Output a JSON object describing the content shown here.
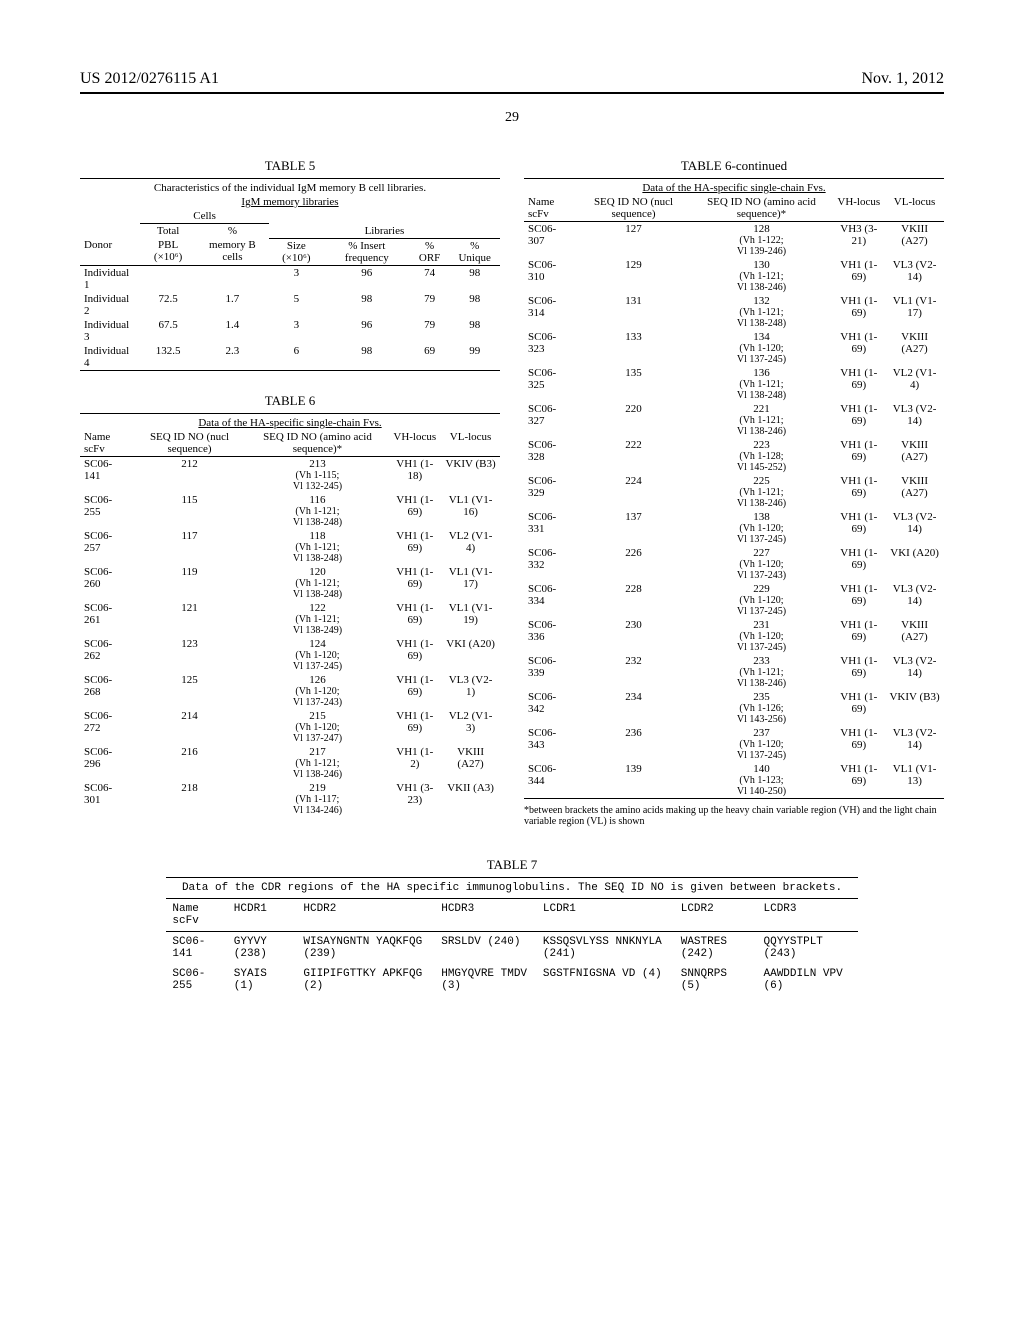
{
  "header": {
    "left": "US 2012/0276115 A1",
    "right": "Nov. 1, 2012"
  },
  "page_number": "29",
  "table5": {
    "title": "TABLE 5",
    "caption1": "Characteristics of the individual IgM memory B cell libraries.",
    "caption2": "IgM memory libraries",
    "group1": "Cells",
    "group2": "Libraries",
    "h_total": "Total",
    "h_pct": "%",
    "h_donor": "Donor",
    "h_pbl": "PBL (×10⁶)",
    "h_mem": "memory B cells",
    "h_size": "Size (×10⁶)",
    "h_insert": "% Insert frequency",
    "h_orf": "% ORF",
    "h_unique": "% Unique",
    "rows": [
      {
        "d": "Individual 1",
        "pbl": "",
        "mem": "",
        "size": "3",
        "ins": "96",
        "orf": "74",
        "uni": "98"
      },
      {
        "d": "Individual 2",
        "pbl": "72.5",
        "mem": "1.7",
        "size": "5",
        "ins": "98",
        "orf": "79",
        "uni": "98"
      },
      {
        "d": "Individual 3",
        "pbl": "67.5",
        "mem": "1.4",
        "size": "3",
        "ins": "96",
        "orf": "79",
        "uni": "98"
      },
      {
        "d": "Individual 4",
        "pbl": "132.5",
        "mem": "2.3",
        "size": "6",
        "ins": "98",
        "orf": "69",
        "uni": "99"
      }
    ]
  },
  "table6": {
    "title": "TABLE 6",
    "title_cont": "TABLE 6-continued",
    "caption": "Data of the HA-specific single-chain Fvs.",
    "h_name": "Name scFv",
    "h_nucl": "SEQ ID NO (nucl sequence)",
    "h_aa": "SEQ ID NO (amino acid sequence)*",
    "h_vh": "VH-locus",
    "h_vl": "VL-locus",
    "left_rows": [
      {
        "n": "SC06-141",
        "s1": "212",
        "s2": "213",
        "s2b": "(Vh 1-115; Vl 132-245)",
        "vh": "VH1 (1-18)",
        "vl": "VKIV (B3)"
      },
      {
        "n": "SC06-255",
        "s1": "115",
        "s2": "116",
        "s2b": "(Vh 1-121; Vl 138-248)",
        "vh": "VH1 (1-69)",
        "vl": "VL1 (V1-16)"
      },
      {
        "n": "SC06-257",
        "s1": "117",
        "s2": "118",
        "s2b": "(Vh 1-121; Vl 138-248)",
        "vh": "VH1 (1-69)",
        "vl": "VL2 (V1-4)"
      },
      {
        "n": "SC06-260",
        "s1": "119",
        "s2": "120",
        "s2b": "(Vh 1-121; Vl 138-248)",
        "vh": "VH1 (1-69)",
        "vl": "VL1 (V1-17)"
      },
      {
        "n": "SC06-261",
        "s1": "121",
        "s2": "122",
        "s2b": "(Vh 1-121; Vl 138-249)",
        "vh": "VH1 (1-69)",
        "vl": "VL1 (V1-19)"
      },
      {
        "n": "SC06-262",
        "s1": "123",
        "s2": "124",
        "s2b": "(Vh 1-120; Vl 137-245)",
        "vh": "VH1 (1-69)",
        "vl": "VKI (A20)"
      },
      {
        "n": "SC06-268",
        "s1": "125",
        "s2": "126",
        "s2b": "(Vh 1-120; Vl 137-243)",
        "vh": "VH1 (1-69)",
        "vl": "VL3 (V2-1)"
      },
      {
        "n": "SC06-272",
        "s1": "214",
        "s2": "215",
        "s2b": "(Vh 1-120; Vl 137-247)",
        "vh": "VH1 (1-69)",
        "vl": "VL2 (V1-3)"
      },
      {
        "n": "SC06-296",
        "s1": "216",
        "s2": "217",
        "s2b": "(Vh 1-121; Vl 138-246)",
        "vh": "VH1 (1-2)",
        "vl": "VKIII (A27)"
      },
      {
        "n": "SC06-301",
        "s1": "218",
        "s2": "219",
        "s2b": "(Vh 1-117; Vl 134-246)",
        "vh": "VH1 (3-23)",
        "vl": "VKII (A3)"
      }
    ],
    "right_rows": [
      {
        "n": "SC06-307",
        "s1": "127",
        "s2": "128",
        "s2b": "(Vh 1-122; Vl 139-246)",
        "vh": "VH3 (3-21)",
        "vl": "VKIII (A27)"
      },
      {
        "n": "SC06-310",
        "s1": "129",
        "s2": "130",
        "s2b": "(Vh 1-121; Vl 138-246)",
        "vh": "VH1 (1-69)",
        "vl": "VL3 (V2-14)"
      },
      {
        "n": "SC06-314",
        "s1": "131",
        "s2": "132",
        "s2b": "(Vh 1-121; Vl 138-248)",
        "vh": "VH1 (1-69)",
        "vl": "VL1 (V1-17)"
      },
      {
        "n": "SC06-323",
        "s1": "133",
        "s2": "134",
        "s2b": "(Vh 1-120; Vl 137-245)",
        "vh": "VH1 (1-69)",
        "vl": "VKIII (A27)"
      },
      {
        "n": "SC06-325",
        "s1": "135",
        "s2": "136",
        "s2b": "(Vh 1-121; Vl 138-248)",
        "vh": "VH1 (1-69)",
        "vl": "VL2 (V1-4)"
      },
      {
        "n": "SC06-327",
        "s1": "220",
        "s2": "221",
        "s2b": "(Vh 1-121; Vl 138-246)",
        "vh": "VH1 (1-69)",
        "vl": "VL3 (V2-14)"
      },
      {
        "n": "SC06-328",
        "s1": "222",
        "s2": "223",
        "s2b": "(Vh 1-128; Vl 145-252)",
        "vh": "VH1 (1-69)",
        "vl": "VKIII (A27)"
      },
      {
        "n": "SC06-329",
        "s1": "224",
        "s2": "225",
        "s2b": "(Vh 1-121; Vl 138-246)",
        "vh": "VH1 (1-69)",
        "vl": "VKIII (A27)"
      },
      {
        "n": "SC06-331",
        "s1": "137",
        "s2": "138",
        "s2b": "(Vh 1-120; Vl 137-245)",
        "vh": "VH1 (1-69)",
        "vl": "VL3 (V2-14)"
      },
      {
        "n": "SC06-332",
        "s1": "226",
        "s2": "227",
        "s2b": "(Vh 1-120; Vl 137-243)",
        "vh": "VH1 (1-69)",
        "vl": "VKI (A20)"
      },
      {
        "n": "SC06-334",
        "s1": "228",
        "s2": "229",
        "s2b": "(Vh 1-120; Vl 137-245)",
        "vh": "VH1 (1-69)",
        "vl": "VL3 (V2-14)"
      },
      {
        "n": "SC06-336",
        "s1": "230",
        "s2": "231",
        "s2b": "(Vh 1-120; Vl 137-245)",
        "vh": "VH1 (1-69)",
        "vl": "VKIII (A27)"
      },
      {
        "n": "SC06-339",
        "s1": "232",
        "s2": "233",
        "s2b": "(Vh 1-121; Vl 138-246)",
        "vh": "VH1 (1-69)",
        "vl": "VL3 (V2-14)"
      },
      {
        "n": "SC06-342",
        "s1": "234",
        "s2": "235",
        "s2b": "(Vh 1-126; Vl 143-256)",
        "vh": "VH1 (1-69)",
        "vl": "VKIV (B3)"
      },
      {
        "n": "SC06-343",
        "s1": "236",
        "s2": "237",
        "s2b": "(Vh 1-120; Vl 137-245)",
        "vh": "VH1 (1-69)",
        "vl": "VL3 (V2-14)"
      },
      {
        "n": "SC06-344",
        "s1": "139",
        "s2": "140",
        "s2b": "(Vh 1-123; Vl 140-250)",
        "vh": "VH1 (1-69)",
        "vl": "VL1 (V1-13)"
      }
    ],
    "footnote": "*between brackets the amino acids making up the heavy chain variable region (VH) and the light chain variable region (VL) is shown"
  },
  "table7": {
    "title": "TABLE 7",
    "caption": "Data of the CDR regions of the HA specific immunoglobulins. The SEQ ID NO is given between brackets.",
    "h_name": "Name scFv",
    "h1": "HCDR1",
    "h2": "HCDR2",
    "h3": "HCDR3",
    "l1": "LCDR1",
    "l2": "LCDR2",
    "l3": "LCDR3",
    "rows": [
      {
        "n": "SC06-141",
        "c1": "GYYVY (238)",
        "c2": "WISAYNGNTN YAQKFQG (239)",
        "c3": "SRSLDV (240)",
        "c4": "KSSQSVLYSS NNKNYLA (241)",
        "c5": "WASTRES (242)",
        "c6": "QQYYSTPLT (243)"
      },
      {
        "n": "SC06-255",
        "c1": "SYAIS (1)",
        "c2": "GIIPIFGTTKY APKFQG (2)",
        "c3": "HMGYQVRE TMDV (3)",
        "c4": "SGSTFNIGSNA VD (4)",
        "c5": "SNNQRPS (5)",
        "c6": "AAWDDILN VPV (6)"
      }
    ]
  }
}
